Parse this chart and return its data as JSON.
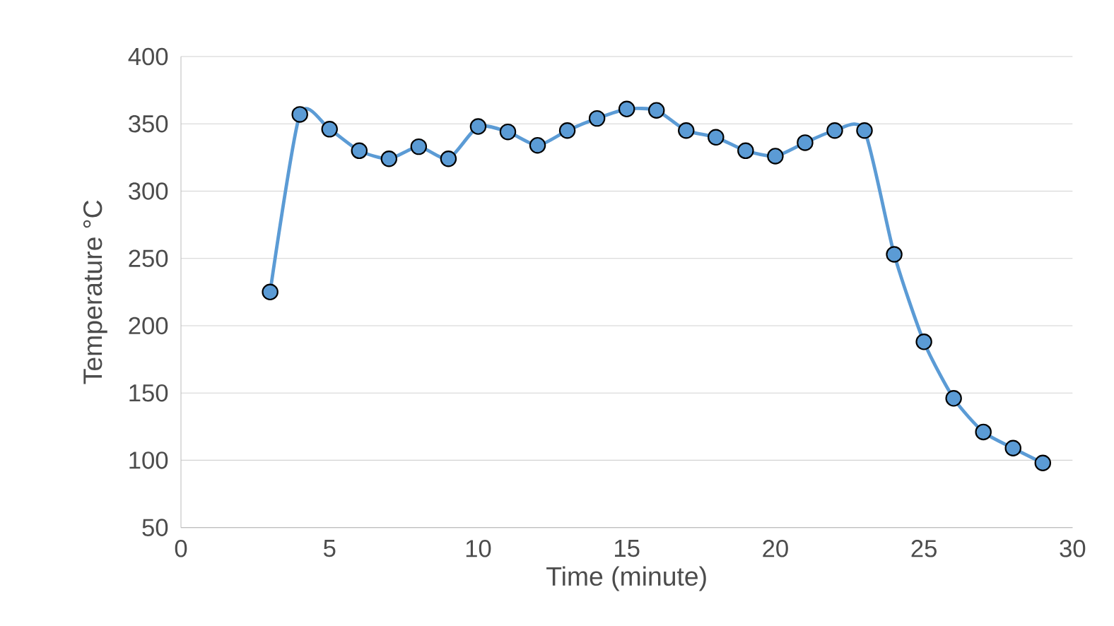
{
  "chart_data": {
    "type": "line",
    "xlabel": "Time (minute)",
    "ylabel": "Temperature °C",
    "x": [
      3,
      4,
      5,
      6,
      7,
      8,
      9,
      10,
      11,
      12,
      13,
      14,
      15,
      16,
      17,
      18,
      19,
      20,
      21,
      22,
      23,
      24,
      25,
      26,
      27,
      28,
      29
    ],
    "series": [
      {
        "color": "#5b9bd5",
        "values": [
          225,
          357,
          346,
          330,
          324,
          333,
          324,
          348,
          344,
          334,
          345,
          354,
          361,
          360,
          345,
          340,
          330,
          326,
          336,
          345,
          345,
          253,
          188,
          146,
          121,
          109,
          98
        ]
      }
    ],
    "xlim": [
      0,
      30
    ],
    "xticks": [
      0,
      5,
      10,
      15,
      20,
      25,
      30
    ],
    "ylim": [
      50,
      400
    ],
    "yticks": [
      50,
      100,
      150,
      200,
      250,
      300,
      350,
      400
    ],
    "grid": "y",
    "marker": "circle",
    "line_style": "solid"
  }
}
